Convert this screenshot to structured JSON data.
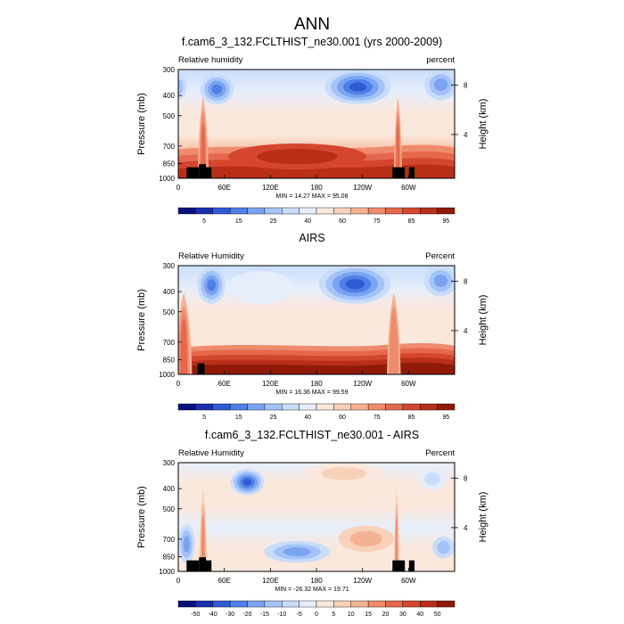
{
  "figure": {
    "title": "ANN"
  },
  "panels": [
    {
      "id": "model",
      "title": "f.cam6_3_132.FCLTHIST_ne30.001 (yrs 2000-2009)",
      "left_label": "Relative humidity",
      "right_label": "percent",
      "stats": "MIN = 14.27  MAX = 95.08"
    },
    {
      "id": "obs",
      "title": "AIRS",
      "left_label": "Relative Humidity",
      "right_label": "Percent",
      "stats": "MIN = 16.36  MAX = 99.59"
    },
    {
      "id": "diff",
      "title": "f.cam6_3_132.FCLTHIST_ne30.001 - AIRS",
      "left_label": "Relative Humidity",
      "right_label": "Percent",
      "stats": "MIN = -26.32  MAX = 19.71"
    }
  ],
  "axes": {
    "ylabel": "Pressure (mb)",
    "y2label": "Height (km)"
  },
  "chart_data": [
    {
      "type": "heatmap",
      "title": "f.cam6_3_132.FCLTHIST_ne30.001 (yrs 2000-2009)",
      "xlabel": "",
      "ylabel": "Pressure (mb)",
      "y2label": "Height (km)",
      "x_ticks": [
        "0",
        "60E",
        "120E",
        "180",
        "120W",
        "60W"
      ],
      "y_ticks": [
        300,
        400,
        500,
        700,
        850,
        1000
      ],
      "y2_ticks": [
        8,
        4
      ],
      "y_scale": "log-pressure",
      "ylim": [
        1000,
        300
      ],
      "field_min": 14.27,
      "field_max": 95.08,
      "colorbar_levels": [
        "5",
        "15",
        "25",
        "40",
        "60",
        "75",
        "85",
        "95"
      ],
      "colormap": [
        "#08107e",
        "#1a2fb0",
        "#2f5ad6",
        "#4f7fe8",
        "#7aa3f2",
        "#a3c3f8",
        "#c9ddfb",
        "#e6eefc",
        "#fbe8dc",
        "#f9d0b8",
        "#f5b193",
        "#ef8b6d",
        "#e5684d",
        "#d4462e",
        "#b82e17",
        "#8e1a0a"
      ]
    },
    {
      "type": "heatmap",
      "title": "AIRS",
      "xlabel": "",
      "ylabel": "Pressure (mb)",
      "y2label": "Height (km)",
      "x_ticks": [
        "0",
        "60E",
        "120E",
        "180",
        "120W",
        "60W"
      ],
      "y_ticks": [
        300,
        400,
        500,
        700,
        850,
        1000
      ],
      "y2_ticks": [
        8,
        4
      ],
      "y_scale": "log-pressure",
      "ylim": [
        1000,
        300
      ],
      "field_min": 16.36,
      "field_max": 99.59,
      "colorbar_levels": [
        "5",
        "15",
        "25",
        "40",
        "60",
        "75",
        "85",
        "95"
      ],
      "colormap": [
        "#08107e",
        "#1a2fb0",
        "#2f5ad6",
        "#4f7fe8",
        "#7aa3f2",
        "#a3c3f8",
        "#c9ddfb",
        "#e6eefc",
        "#fbe8dc",
        "#f9d0b8",
        "#f5b193",
        "#ef8b6d",
        "#e5684d",
        "#d4462e",
        "#b82e17",
        "#8e1a0a"
      ]
    },
    {
      "type": "heatmap",
      "title": "f.cam6_3_132.FCLTHIST_ne30.001 - AIRS",
      "xlabel": "",
      "ylabel": "Pressure (mb)",
      "y2label": "Height (km)",
      "x_ticks": [
        "0",
        "60E",
        "120E",
        "180",
        "120W",
        "60W"
      ],
      "y_ticks": [
        300,
        400,
        500,
        700,
        850,
        1000
      ],
      "y2_ticks": [
        8,
        4
      ],
      "y_scale": "log-pressure",
      "ylim": [
        1000,
        300
      ],
      "field_min": -26.32,
      "field_max": 19.71,
      "colorbar_levels": [
        "-50",
        "-40",
        "-30",
        "-20",
        "-15",
        "-10",
        "-5",
        "0",
        "5",
        "10",
        "15",
        "20",
        "30",
        "40",
        "50"
      ],
      "colormap": [
        "#08107e",
        "#1a2fb0",
        "#2f5ad6",
        "#4f7fe8",
        "#7aa3f2",
        "#a3c3f8",
        "#c9ddfb",
        "#e6eefc",
        "#fbe8dc",
        "#f9d0b8",
        "#f5b193",
        "#ef8b6d",
        "#e5684d",
        "#d4462e",
        "#b82e17",
        "#8e1a0a"
      ]
    }
  ]
}
